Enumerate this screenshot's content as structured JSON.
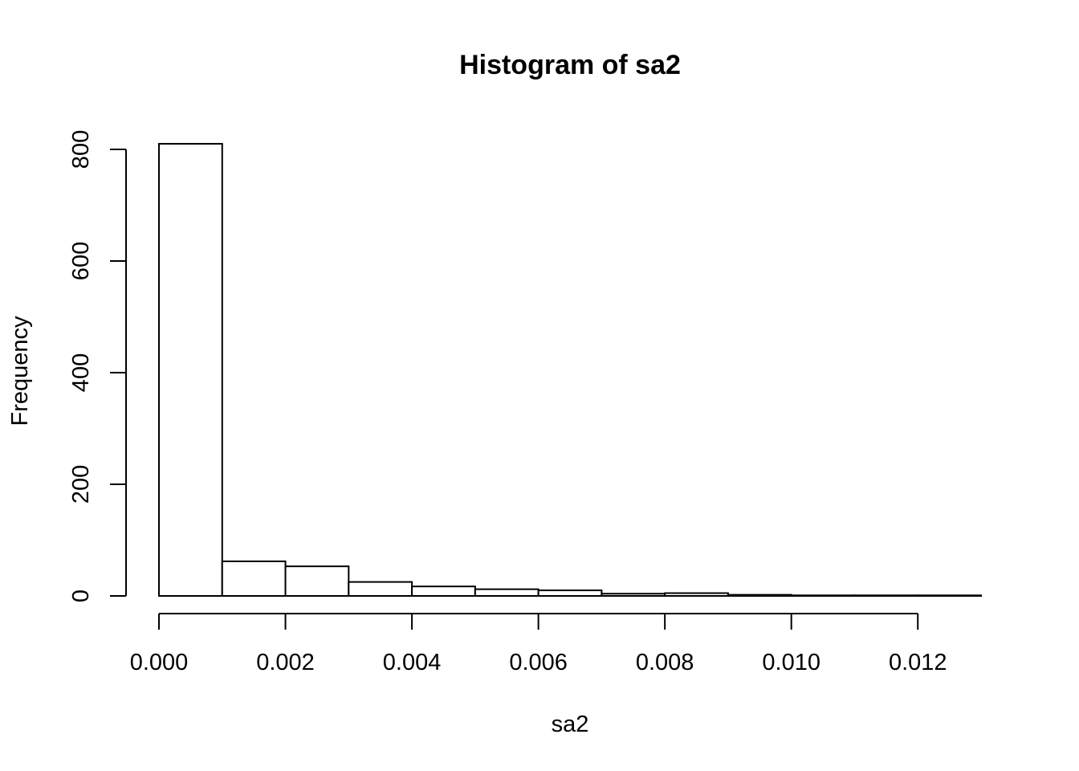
{
  "chart_data": {
    "type": "bar",
    "title": "Histogram of sa2",
    "xlabel": "sa2",
    "ylabel": "Frequency",
    "bin_edges": [
      0.0,
      0.001,
      0.002,
      0.003,
      0.004,
      0.005,
      0.006,
      0.007,
      0.008,
      0.009,
      0.01,
      0.011,
      0.012,
      0.013
    ],
    "values": [
      810,
      62,
      53,
      25,
      17,
      12,
      10,
      4,
      5,
      2,
      1,
      1,
      1
    ],
    "xlim": [
      0.0,
      0.013
    ],
    "ylim": [
      0,
      810
    ],
    "x_ticks": [
      0.0,
      0.002,
      0.004,
      0.006,
      0.008,
      0.01,
      0.012
    ],
    "x_tick_labels": [
      "0.000",
      "0.002",
      "0.004",
      "0.006",
      "0.008",
      "0.010",
      "0.012"
    ],
    "y_ticks": [
      0,
      200,
      400,
      600,
      800
    ],
    "y_tick_labels": [
      "0",
      "200",
      "400",
      "600",
      "800"
    ],
    "grid": false,
    "colors": {
      "bar_fill": "#ffffff",
      "bar_stroke": "#000000",
      "axis": "#000000",
      "background": "#ffffff"
    }
  }
}
